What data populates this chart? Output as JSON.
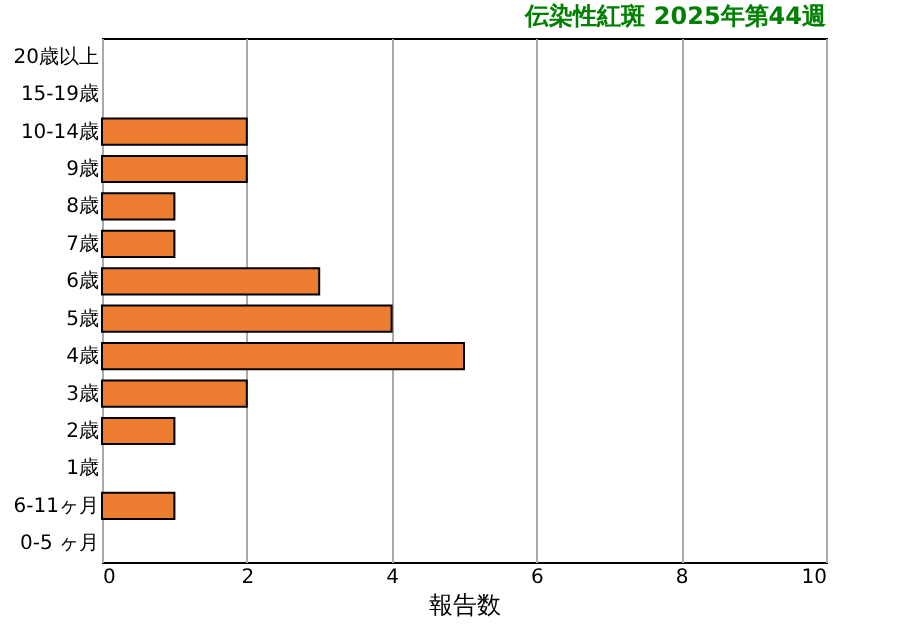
{
  "chart_data": {
    "type": "bar",
    "orientation": "horizontal",
    "title": "伝染性紅斑 2025年第44週",
    "xlabel": "報告数",
    "categories": [
      "20歳以上",
      "15-19歳",
      "10-14歳",
      "9歳",
      "8歳",
      "7歳",
      "6歳",
      "5歳",
      "4歳",
      "3歳",
      "2歳",
      "1歳",
      "6-11ヶ月",
      "0-5 ヶ月"
    ],
    "values": [
      0,
      0,
      2,
      2,
      1,
      1,
      3,
      4,
      5,
      2,
      1,
      0,
      1,
      0
    ],
    "color": "#ed7d31",
    "xlim": [
      0,
      10
    ],
    "xticks": [
      0,
      2,
      4,
      6,
      8,
      10
    ],
    "grid": "x"
  }
}
